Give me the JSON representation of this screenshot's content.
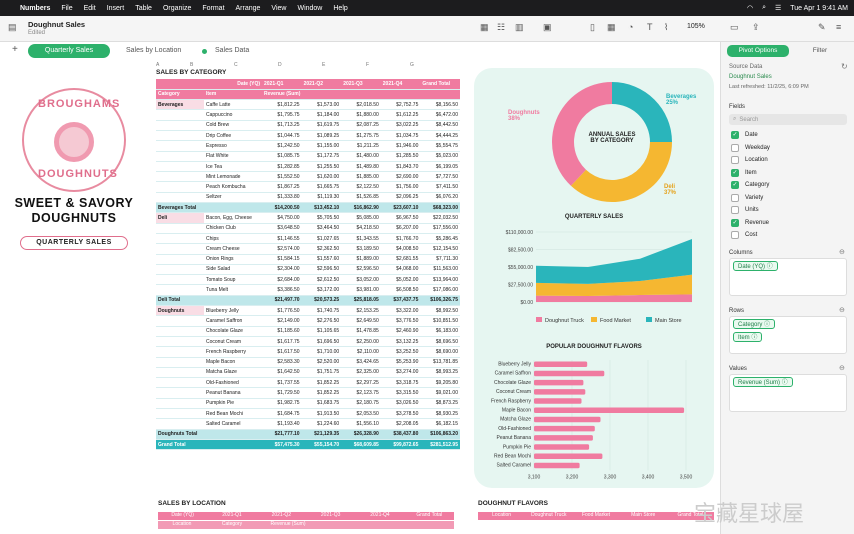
{
  "menubar": {
    "app": "Numbers",
    "items": [
      "File",
      "Edit",
      "Insert",
      "Table",
      "Organize",
      "Format",
      "Arrange",
      "View",
      "Window",
      "Help"
    ],
    "datetime": "Tue Apr 1  9:41 AM"
  },
  "document": {
    "title": "Doughnut Sales",
    "status": "Edited"
  },
  "toolbar": {
    "zoom": "105%"
  },
  "sheets": {
    "items": [
      "Quarterly Sales",
      "Sales by Location",
      "Sales Data"
    ],
    "active": "Quarterly Sales"
  },
  "poster": {
    "logo_top": "BROUGHAMS",
    "logo_bottom": "DOUGHNUTS",
    "headline_1": "SWEET & SAVORY",
    "headline_2": "DOUGHNUTS",
    "pill": "QUARTERLY SALES"
  },
  "pivot": {
    "caption": "SALES BY CATEGORY",
    "columns": [
      "A",
      "B",
      "C",
      "D",
      "E",
      "F",
      "G"
    ],
    "header": [
      "Date (YQ)",
      "2021-Q1",
      "2021-Q2",
      "2021-Q3",
      "2021-Q4",
      "Grand Total"
    ],
    "header2": [
      "Category",
      "Item",
      "Revenue (Sum)"
    ],
    "rows": [
      [
        "Beverages",
        "Caffe Latte",
        "$1,812.25",
        "$1,573.00",
        "$2,018.50",
        "$2,752.75",
        "$8,156.50"
      ],
      [
        "",
        "Cappuccino",
        "$1,795.75",
        "$1,184.00",
        "$1,880.00",
        "$1,612.25",
        "$6,472.00"
      ],
      [
        "",
        "Cold Brew",
        "$1,713.25",
        "$1,619.75",
        "$2,087.25",
        "$3,022.25",
        "$8,442.50"
      ],
      [
        "",
        "Drip Coffee",
        "$1,044.75",
        "$1,089.25",
        "$1,275.75",
        "$1,034.75",
        "$4,444.25"
      ],
      [
        "",
        "Espresso",
        "$1,242.50",
        "$1,155.00",
        "$1,211.25",
        "$1,946.00",
        "$5,554.75"
      ],
      [
        "",
        "Flat White",
        "$1,085.75",
        "$1,172.75",
        "$1,480.00",
        "$1,285.50",
        "$5,023.00"
      ],
      [
        "",
        "Ice Tea",
        "$1,282.85",
        "$1,255.50",
        "$1,489.80",
        "$1,843.70",
        "$6,199.05"
      ],
      [
        "",
        "Mint Lemonade",
        "$1,552.50",
        "$1,620.00",
        "$1,885.00",
        "$2,690.00",
        "$7,727.50"
      ],
      [
        "",
        "Peach Kombucha",
        "$1,867.25",
        "$1,665.75",
        "$2,122.50",
        "$1,756.00",
        "$7,411.50"
      ],
      [
        "",
        "Seltzer",
        "$1,333.80",
        "$1,119.30",
        "$1,526.85",
        "$2,096.25",
        "$6,076.20"
      ],
      [
        "Beverages Total",
        "",
        "$14,200.50",
        "$13,452.10",
        "$16,862.90",
        "$23,607.10",
        "$68,323.00"
      ],
      [
        "Deli",
        "Bacon, Egg, Cheese",
        "$4,750.00",
        "$5,705.50",
        "$5,085.00",
        "$6,967.50",
        "$22,032.50"
      ],
      [
        "",
        "Chicken Club",
        "$3,648.50",
        "$3,464.50",
        "$4,218.50",
        "$6,207.00",
        "$17,556.00"
      ],
      [
        "",
        "Chips",
        "$1,146.55",
        "$1,027.65",
        "$1,343.55",
        "$1,766.70",
        "$5,286.45"
      ],
      [
        "",
        "Cream Cheese",
        "$2,574.00",
        "$2,362.50",
        "$3,189.50",
        "$4,008.50",
        "$12,154.50"
      ],
      [
        "",
        "Onion Rings",
        "$1,584.15",
        "$1,557.60",
        "$1,889.00",
        "$2,681.55",
        "$7,711.30"
      ],
      [
        "",
        "Side Salad",
        "$2,304.00",
        "$2,596.50",
        "$2,596.50",
        "$4,068.00",
        "$11,563.00"
      ],
      [
        "",
        "Tomato Soup",
        "$2,684.00",
        "$2,612.50",
        "$3,052.00",
        "$5,052.00",
        "$13,964.00"
      ],
      [
        "",
        "Tuna Melt",
        "$3,386.50",
        "$3,172.00",
        "$3,981.00",
        "$6,508.50",
        "$17,086.00"
      ],
      [
        "Deli Total",
        "",
        "$21,497.70",
        "$20,573.25",
        "$25,818.05",
        "$37,437.75",
        "$106,326.75"
      ],
      [
        "Doughnuts",
        "Blueberry Jelly",
        "$1,776.50",
        "$1,740.75",
        "$2,153.25",
        "$3,322.00",
        "$8,992.50"
      ],
      [
        "",
        "Caramel Saffron",
        "$2,149.00",
        "$2,276.50",
        "$2,649.50",
        "$3,776.50",
        "$10,851.50"
      ],
      [
        "",
        "Chocolate Glaze",
        "$1,185.60",
        "$1,105.65",
        "$1,478.85",
        "$2,460.90",
        "$6,183.00"
      ],
      [
        "",
        "Coconut Cream",
        "$1,617.75",
        "$1,696.50",
        "$2,250.00",
        "$3,132.25",
        "$8,696.50"
      ],
      [
        "",
        "French Raspberry",
        "$1,617.50",
        "$1,710.00",
        "$2,110.00",
        "$3,252.50",
        "$8,690.00"
      ],
      [
        "",
        "Maple Bacon",
        "$2,583.30",
        "$2,520.00",
        "$3,424.65",
        "$5,253.90",
        "$13,781.85"
      ],
      [
        "",
        "Matcha Glaze",
        "$1,642.50",
        "$1,751.75",
        "$2,325.00",
        "$3,274.00",
        "$8,993.25"
      ],
      [
        "",
        "Old-Fashioned",
        "$1,737.55",
        "$1,852.25",
        "$2,297.25",
        "$3,318.75",
        "$9,205.80"
      ],
      [
        "",
        "Peanut Banana",
        "$1,729.50",
        "$1,852.25",
        "$2,123.75",
        "$3,315.50",
        "$9,021.00"
      ],
      [
        "",
        "Pumpkin Pie",
        "$1,982.75",
        "$1,683.75",
        "$2,180.75",
        "$3,026.50",
        "$8,873.25"
      ],
      [
        "",
        "Red Bean Mochi",
        "$1,684.75",
        "$1,913.50",
        "$2,053.50",
        "$3,278.50",
        "$8,930.25"
      ],
      [
        "",
        "Salted Caramel",
        "$1,193.40",
        "$1,224.60",
        "$1,556.10",
        "$2,208.05",
        "$6,182.15"
      ],
      [
        "Doughnuts Total",
        "",
        "$21,777.10",
        "$21,129.35",
        "$26,328.90",
        "$38,437.80",
        "$106,863.20"
      ],
      [
        "Grand Total",
        "",
        "$57,475.30",
        "$55,154.70",
        "$68,609.85",
        "$99,872.65",
        "$281,512.95"
      ]
    ]
  },
  "donut": {
    "title_1": "ANNUAL SALES",
    "title_2": "BY CATEGORY",
    "labels": [
      {
        "name": "Beverages",
        "pct": "25%",
        "color": "#2ab5bb"
      },
      {
        "name": "Deli",
        "pct": "37%",
        "color": "#f5b731"
      },
      {
        "name": "Doughnuts",
        "pct": "38%",
        "color": "#f07ba0"
      }
    ]
  },
  "area": {
    "title": "QUARTERLY SALES",
    "yticks": [
      "$110,000.00",
      "$82,500.00",
      "$55,000.00",
      "$27,500.00",
      "$0.00"
    ],
    "legend": [
      "Doughnut Truck",
      "Food Market",
      "Main Store"
    ],
    "colors": [
      "#f07ba0",
      "#f5b731",
      "#2ab5bb"
    ]
  },
  "bars": {
    "title": "POPULAR DOUGHNUT FLAVORS",
    "xticks": [
      "3,100",
      "3,200",
      "3,300",
      "3,400",
      "3,500"
    ]
  },
  "bottom": {
    "t1_caption": "SALES BY LOCATION",
    "t1_header": [
      "Date (YQ)",
      "2021-Q1",
      "2021-Q2",
      "2021-Q3",
      "2021-Q4",
      "Grand Total"
    ],
    "t1_row2": [
      "Location",
      "Category",
      "Revenue (Sum)"
    ],
    "t2_caption": "DOUGHNUT FLAVORS",
    "t2_header": [
      "Location",
      "Doughnut Truck",
      "Food Market",
      "Main Store",
      "Grand Total"
    ]
  },
  "inspector": {
    "tabs": [
      "Pivot Options",
      "Filter"
    ],
    "source_label": "Source Data",
    "source_value": "Doughnut Sales",
    "refreshed": "Last refreshed: 11/2/25, 6:09 PM",
    "fields_label": "Fields",
    "search_placeholder": "Search",
    "fields": [
      {
        "name": "Date",
        "on": true
      },
      {
        "name": "Weekday",
        "on": false
      },
      {
        "name": "Location",
        "on": false
      },
      {
        "name": "Item",
        "on": true
      },
      {
        "name": "Category",
        "on": true
      },
      {
        "name": "Variety",
        "on": false
      },
      {
        "name": "Units",
        "on": false
      },
      {
        "name": "Revenue",
        "on": true
      },
      {
        "name": "Cost",
        "on": false
      }
    ],
    "columns_label": "Columns",
    "columns_chip": "Date (YQ)",
    "rows_label": "Rows",
    "rows_chips": [
      "Category",
      "Item"
    ],
    "values_label": "Values",
    "values_chip": "Revenue (Sum)"
  },
  "chart_data": [
    {
      "type": "pie",
      "title": "ANNUAL SALES BY CATEGORY",
      "categories": [
        "Beverages",
        "Deli",
        "Doughnuts"
      ],
      "values": [
        25,
        37,
        38
      ]
    },
    {
      "type": "area",
      "title": "QUARTERLY SALES",
      "categories": [
        "2021-Q1",
        "2021-Q2",
        "2021-Q3",
        "2021-Q4"
      ],
      "ylim": [
        0,
        110000
      ],
      "series": [
        {
          "name": "Doughnut Truck",
          "values": [
            10000,
            9500,
            11000,
            12000
          ]
        },
        {
          "name": "Food Market",
          "values": [
            20000,
            19000,
            22000,
            31000
          ]
        },
        {
          "name": "Main Store",
          "values": [
            27000,
            26500,
            35000,
            56000
          ]
        }
      ]
    },
    {
      "type": "bar",
      "title": "POPULAR DOUGHNUT FLAVORS",
      "categories": [
        "Blueberry Jelly",
        "Caramel Saffron",
        "Chocolate Glaze",
        "Coconut Cream",
        "French Raspberry",
        "Maple Bacon",
        "Matcha Glaze",
        "Old-Fashioned",
        "Peanut Banana",
        "Pumpkin Pie",
        "Red Bean Mochi",
        "Salted Caramel"
      ],
      "values": [
        3240,
        3285,
        3230,
        3235,
        3225,
        3495,
        3275,
        3260,
        3255,
        3245,
        3280,
        3220
      ],
      "xlim": [
        3100,
        3500
      ]
    }
  ]
}
